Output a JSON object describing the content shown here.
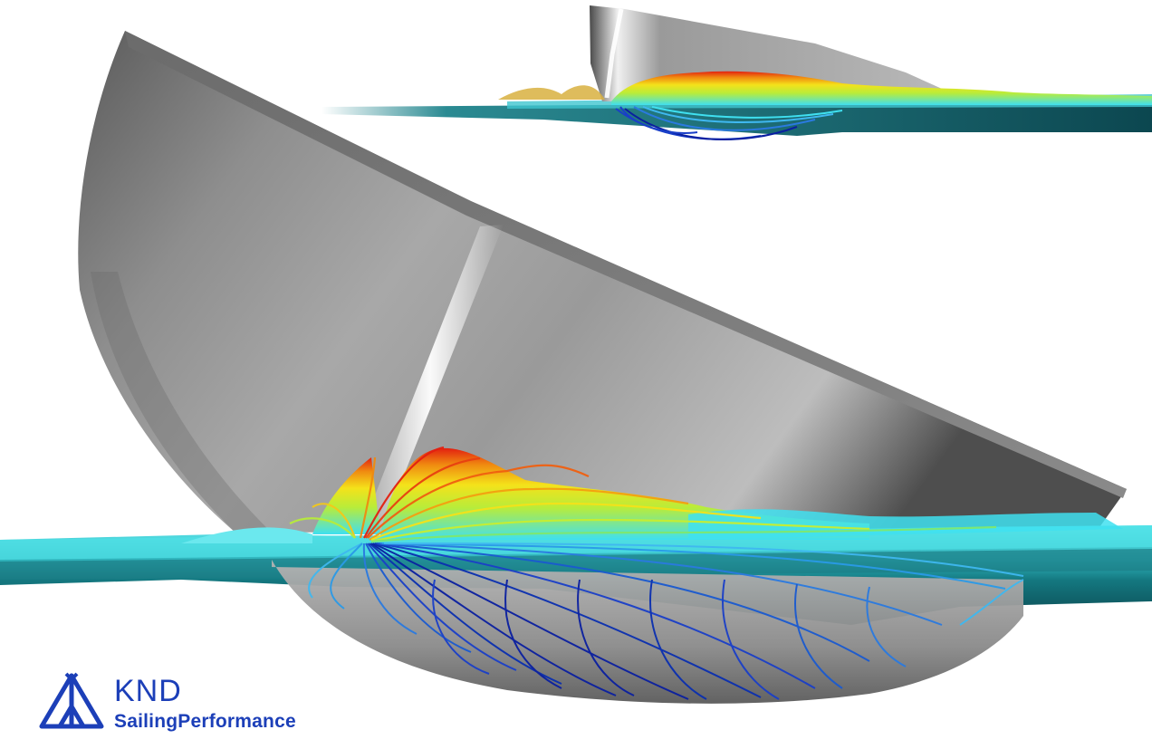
{
  "logo": {
    "brand": "KND",
    "tagline": "SailingPerformance",
    "color": "#1c3fb8",
    "icon": "tent-sail-mark-icon"
  },
  "scene": {
    "subject": "hull-flow-streamlines",
    "colors": {
      "hull_light": "#d8d8d8",
      "hull_mid": "#9a9a9a",
      "hull_dark": "#4a4a4a",
      "water_top": "#4fe0e6",
      "water_mid": "#1f8f98",
      "water_deep": "#0c4750",
      "stream_red": "#e32010",
      "stream_orange": "#f08a10",
      "stream_yellow": "#f4e21a",
      "stream_cyan": "#3fe0f0",
      "stream_blue": "#2a7ae0",
      "stream_navy": "#0a1fa0"
    }
  }
}
